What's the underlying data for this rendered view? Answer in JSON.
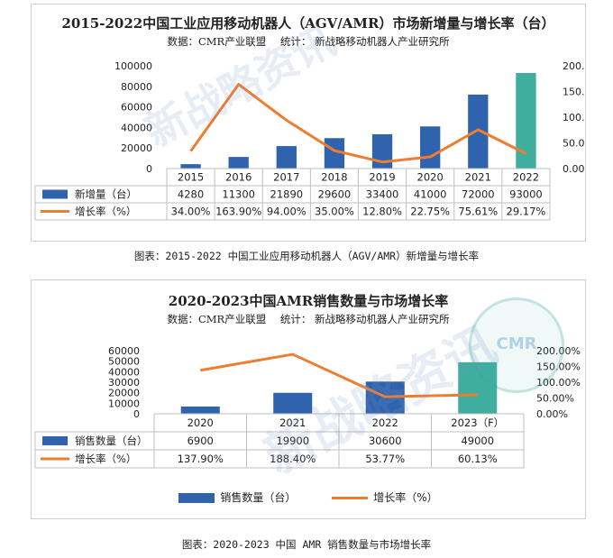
{
  "chart_data": [
    {
      "type": "bar",
      "title": "2015-2022中国工业应用移动机器人（AGV/AMR）市场新增量与增长率（台）",
      "source_label": "数据：CMR产业联盟",
      "stats_label": "统计：   新战略移动机器人产业研究所",
      "categories": [
        "2015",
        "2016",
        "2017",
        "2018",
        "2019",
        "2020",
        "2021",
        "2022"
      ],
      "series": [
        {
          "name": "新增量（台）",
          "type": "bar",
          "values": [
            4280,
            11300,
            21890,
            29600,
            33400,
            41000,
            72000,
            93000
          ],
          "labels": [
            "4280",
            "11300",
            "21890",
            "29600",
            "33400",
            "41000",
            "72000",
            "93000"
          ]
        },
        {
          "name": "增长率（%）",
          "type": "line",
          "values": [
            34.0,
            163.9,
            94.0,
            35.0,
            12.8,
            22.75,
            75.61,
            29.17
          ],
          "labels": [
            "34.00%",
            "163.90%",
            "94.00%",
            "35.00%",
            "12.80%",
            "22.75%",
            "75.61%",
            "29.17%"
          ]
        }
      ],
      "ylim": [
        0,
        100000
      ],
      "y_ticks": [
        "0",
        "20000",
        "40000",
        "60000",
        "80000",
        "100000"
      ],
      "y2lim": [
        0,
        200
      ],
      "y2_ticks": [
        "0.00%",
        "50.00%",
        "100.00%",
        "150.00%",
        "200.00%"
      ],
      "caption": "图表：2015-2022 中国工业应用移动机器人（AGV/AMR）新增量与增长率",
      "colors": {
        "bar": "#2f63ad",
        "bar_last": "#3fae9f",
        "line": "#ed7d31"
      }
    },
    {
      "type": "bar",
      "title": "2020-2023中国AMR销售数量与市场增长率",
      "source_label": "数据：CMR产业联盟",
      "stats_label": "统计：  新战略移动机器人产业研究所",
      "categories": [
        "2020",
        "2021",
        "2022",
        "2023（F）"
      ],
      "series": [
        {
          "name": "销售数量（台）",
          "type": "bar",
          "values": [
            6900,
            19900,
            30600,
            49000
          ],
          "labels": [
            "6900",
            "19900",
            "30600",
            "49000"
          ]
        },
        {
          "name": "增长率（%）",
          "type": "line",
          "values": [
            137.9,
            188.4,
            53.77,
            60.13
          ],
          "labels": [
            "137.90%",
            "188.40%",
            "53.77%",
            "60.13%"
          ]
        }
      ],
      "ylim": [
        0,
        60000
      ],
      "y_ticks": [
        "0",
        "10000",
        "20000",
        "30000",
        "40000",
        "50000",
        "60000"
      ],
      "y2lim": [
        0,
        200
      ],
      "y2_ticks": [
        "0.00%",
        "50.00%",
        "100.00%",
        "150.00%",
        "200.00%"
      ],
      "legend": [
        "销售数量（台）",
        "增长率（%）"
      ],
      "caption": "图表：2020-2023 中国 AMR 销售数量与市场增长率",
      "colors": {
        "bar": "#2f63ad",
        "bar_last": "#3fae9f",
        "line": "#ed7d31"
      }
    }
  ],
  "watermark": {
    "text": "新战略资讯",
    "badge": "CMR"
  }
}
